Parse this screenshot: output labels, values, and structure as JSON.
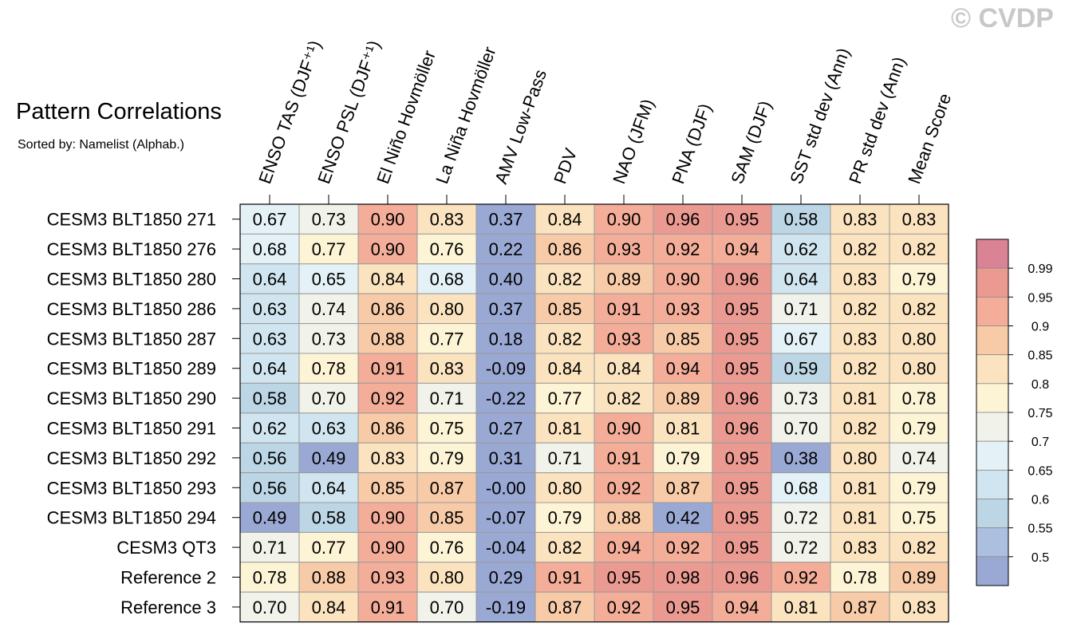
{
  "chart_data": {
    "type": "heatmap",
    "title": "Pattern Correlations",
    "subtitle": "Sorted by: Namelist (Alphab.)",
    "watermark": "© CVDP",
    "columns": [
      "ENSO TAS (DJF⁺¹)",
      "ENSO PSL (DJF⁺¹)",
      "El Niño Hovmöller",
      "La Niña Hovmöller",
      "AMV Low-Pass",
      "PDV",
      "NAO (JFM)",
      "PNA (DJF)",
      "SAM (DJF)",
      "SST std dev (Ann)",
      "PR std dev (Ann)",
      "Mean Score"
    ],
    "rows": [
      "CESM3 BLT1850 271",
      "CESM3 BLT1850 276",
      "CESM3 BLT1850 280",
      "CESM3 BLT1850 286",
      "CESM3 BLT1850 287",
      "CESM3 BLT1850 289",
      "CESM3 BLT1850 290",
      "CESM3 BLT1850 291",
      "CESM3 BLT1850 292",
      "CESM3 BLT1850 293",
      "CESM3 BLT1850 294",
      "CESM3 QT3",
      "Reference 2",
      "Reference 3"
    ],
    "values": [
      [
        "0.67",
        "0.73",
        "0.90",
        "0.83",
        "0.37",
        "0.84",
        "0.90",
        "0.96",
        "0.95",
        "0.58",
        "0.83",
        "0.83"
      ],
      [
        "0.68",
        "0.77",
        "0.90",
        "0.76",
        "0.22",
        "0.86",
        "0.93",
        "0.92",
        "0.94",
        "0.62",
        "0.82",
        "0.82"
      ],
      [
        "0.64",
        "0.65",
        "0.84",
        "0.68",
        "0.40",
        "0.82",
        "0.89",
        "0.90",
        "0.96",
        "0.64",
        "0.83",
        "0.79"
      ],
      [
        "0.63",
        "0.74",
        "0.86",
        "0.80",
        "0.37",
        "0.85",
        "0.91",
        "0.93",
        "0.95",
        "0.71",
        "0.82",
        "0.82"
      ],
      [
        "0.63",
        "0.73",
        "0.88",
        "0.77",
        "0.18",
        "0.82",
        "0.93",
        "0.85",
        "0.95",
        "0.67",
        "0.83",
        "0.80"
      ],
      [
        "0.64",
        "0.78",
        "0.91",
        "0.83",
        "-0.09",
        "0.84",
        "0.84",
        "0.94",
        "0.95",
        "0.59",
        "0.82",
        "0.80"
      ],
      [
        "0.58",
        "0.70",
        "0.92",
        "0.71",
        "-0.22",
        "0.77",
        "0.82",
        "0.89",
        "0.96",
        "0.73",
        "0.81",
        "0.78"
      ],
      [
        "0.62",
        "0.63",
        "0.86",
        "0.75",
        "0.27",
        "0.81",
        "0.90",
        "0.81",
        "0.96",
        "0.70",
        "0.82",
        "0.79"
      ],
      [
        "0.56",
        "0.49",
        "0.83",
        "0.79",
        "0.31",
        "0.71",
        "0.91",
        "0.79",
        "0.95",
        "0.38",
        "0.80",
        "0.74"
      ],
      [
        "0.56",
        "0.64",
        "0.85",
        "0.87",
        "-0.00",
        "0.80",
        "0.92",
        "0.87",
        "0.95",
        "0.68",
        "0.81",
        "0.79"
      ],
      [
        "0.49",
        "0.58",
        "0.90",
        "0.85",
        "-0.07",
        "0.79",
        "0.88",
        "0.42",
        "0.95",
        "0.72",
        "0.81",
        "0.75"
      ],
      [
        "0.71",
        "0.77",
        "0.90",
        "0.76",
        "-0.04",
        "0.82",
        "0.94",
        "0.92",
        "0.95",
        "0.72",
        "0.83",
        "0.82"
      ],
      [
        "0.78",
        "0.88",
        "0.93",
        "0.80",
        "0.29",
        "0.91",
        "0.95",
        "0.98",
        "0.96",
        "0.92",
        "0.78",
        "0.89"
      ],
      [
        "0.70",
        "0.84",
        "0.91",
        "0.70",
        "-0.19",
        "0.87",
        "0.92",
        "0.95",
        "0.94",
        "0.81",
        "0.87",
        "0.83"
      ]
    ],
    "colorbar": {
      "labels": [
        "0.99",
        "0.95",
        "0.9",
        "0.85",
        "0.8",
        "0.75",
        "0.7",
        "0.65",
        "0.6",
        "0.55",
        "0.5"
      ],
      "thresholds": [
        0.5,
        0.55,
        0.6,
        0.65,
        0.7,
        0.75,
        0.8,
        0.85,
        0.9,
        0.95,
        0.99
      ],
      "colors": [
        "#9aa8d4",
        "#adbfde",
        "#bcd6e6",
        "#d0e5ef",
        "#e4f1f6",
        "#f1f3ea",
        "#fdf4d6",
        "#fbe3bf",
        "#f8cba8",
        "#f3ad98",
        "#eb9a92",
        "#d98394"
      ]
    }
  }
}
